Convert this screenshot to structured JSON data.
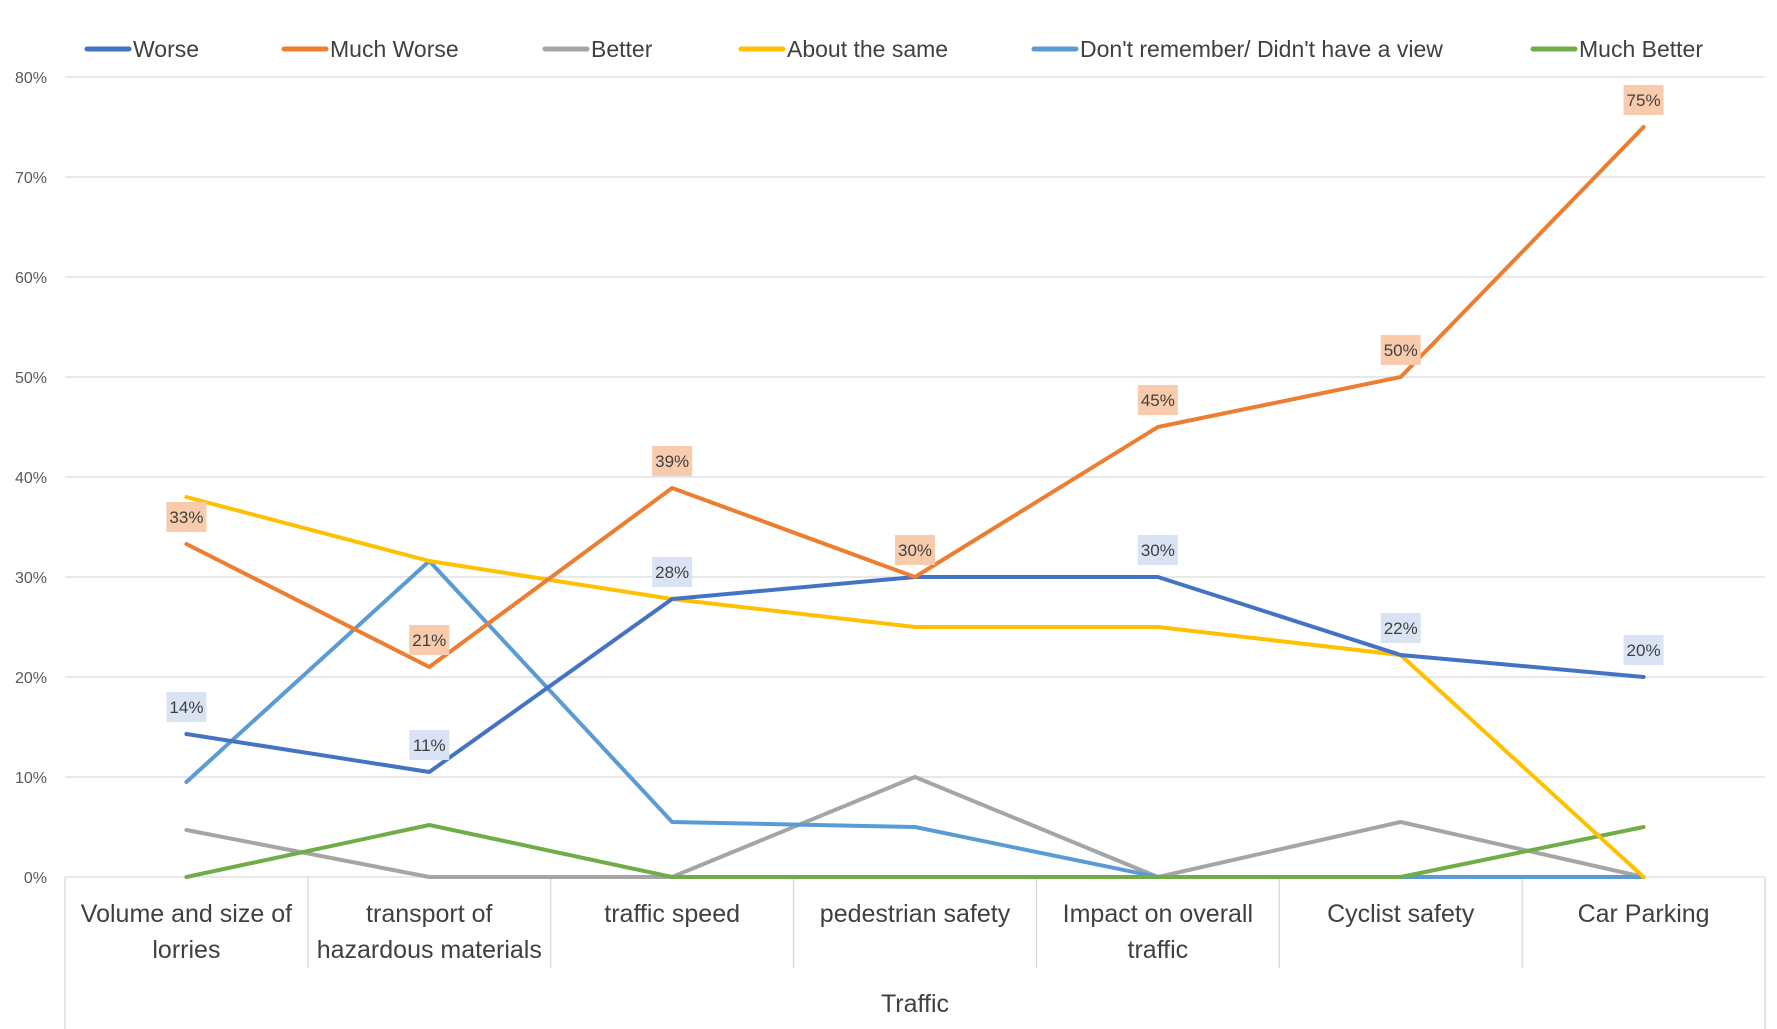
{
  "chart_data": {
    "type": "line",
    "title": "",
    "xlabel": "Traffic",
    "ylabel": "",
    "ylim": [
      0,
      0.8
    ],
    "y_ticks": [
      "0%",
      "10%",
      "20%",
      "30%",
      "40%",
      "50%",
      "60%",
      "70%",
      "80%"
    ],
    "grid": "horizontal",
    "legend_position": "top",
    "categories": [
      [
        "Volume and size of",
        "lorries"
      ],
      [
        "transport of",
        "hazardous materials"
      ],
      [
        "traffic speed"
      ],
      [
        "pedestrian safety"
      ],
      [
        "Impact on overall",
        "traffic"
      ],
      [
        "Cyclist safety"
      ],
      [
        "Car Parking"
      ]
    ],
    "series": [
      {
        "name": "Worse",
        "color": "#4472c4",
        "values": [
          0.143,
          0.105,
          0.278,
          0.3,
          0.3,
          0.222,
          0.2
        ],
        "labels": [
          "14%",
          "11%",
          "28%",
          "",
          "30%",
          "22%",
          "20%"
        ],
        "label_bg": "#dae3f3"
      },
      {
        "name": "Much Worse",
        "color": "#ed7d31",
        "values": [
          0.333,
          0.21,
          0.389,
          0.3,
          0.45,
          0.5,
          0.75
        ],
        "labels": [
          "33%",
          "21%",
          "39%",
          "30%",
          "45%",
          "50%",
          "75%"
        ],
        "label_bg": "#f8cbad"
      },
      {
        "name": "Better",
        "color": "#a5a5a5",
        "values": [
          0.047,
          0.0,
          0.0,
          0.1,
          0.0,
          0.055,
          0.0
        ],
        "labels": [],
        "label_bg": ""
      },
      {
        "name": "About the same",
        "color": "#ffc000",
        "values": [
          0.38,
          0.316,
          0.278,
          0.25,
          0.25,
          0.222,
          0.0
        ],
        "labels": [],
        "label_bg": ""
      },
      {
        "name": "Don't remember/ Didn't have a view",
        "color": "#5b9bd5",
        "values": [
          0.095,
          0.316,
          0.055,
          0.05,
          0.0,
          0.0,
          0.0
        ],
        "labels": [],
        "label_bg": ""
      },
      {
        "name": "Much Better",
        "color": "#70ad47",
        "values": [
          0.0,
          0.052,
          0.0,
          0.0,
          0.0,
          0.0,
          0.05
        ],
        "labels": [],
        "label_bg": ""
      }
    ],
    "draw_order": [
      2,
      4,
      5,
      3,
      0,
      1
    ]
  }
}
